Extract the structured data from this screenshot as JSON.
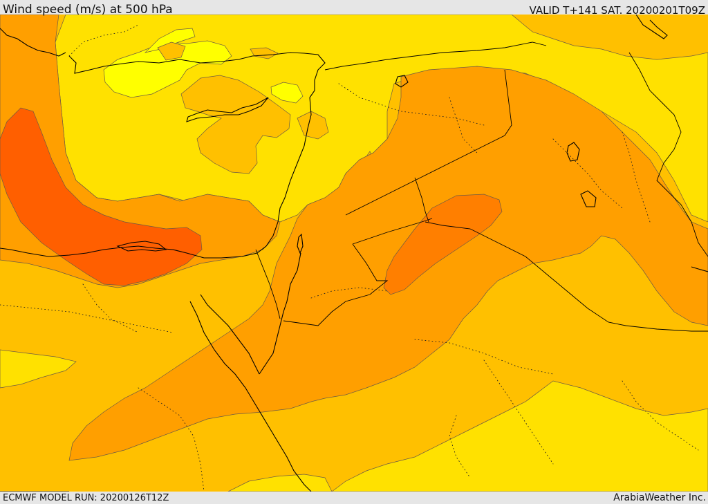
{
  "header": {
    "title": "Wind speed (m/s) at 500 hPa",
    "valid": "VALID T+141 SAT. 20200201T09Z"
  },
  "footer": {
    "model_run": "ECMWF MODEL RUN: 20200126T12Z",
    "credit": "ArabiaWeather Inc."
  },
  "colors": {
    "band_lightest": "#ffff00",
    "band_1": "#ffe100",
    "band_2": "#ffc000",
    "band_3": "#ff9f00",
    "band_4": "#ff5f00",
    "frame": "#e6e6e6"
  }
}
